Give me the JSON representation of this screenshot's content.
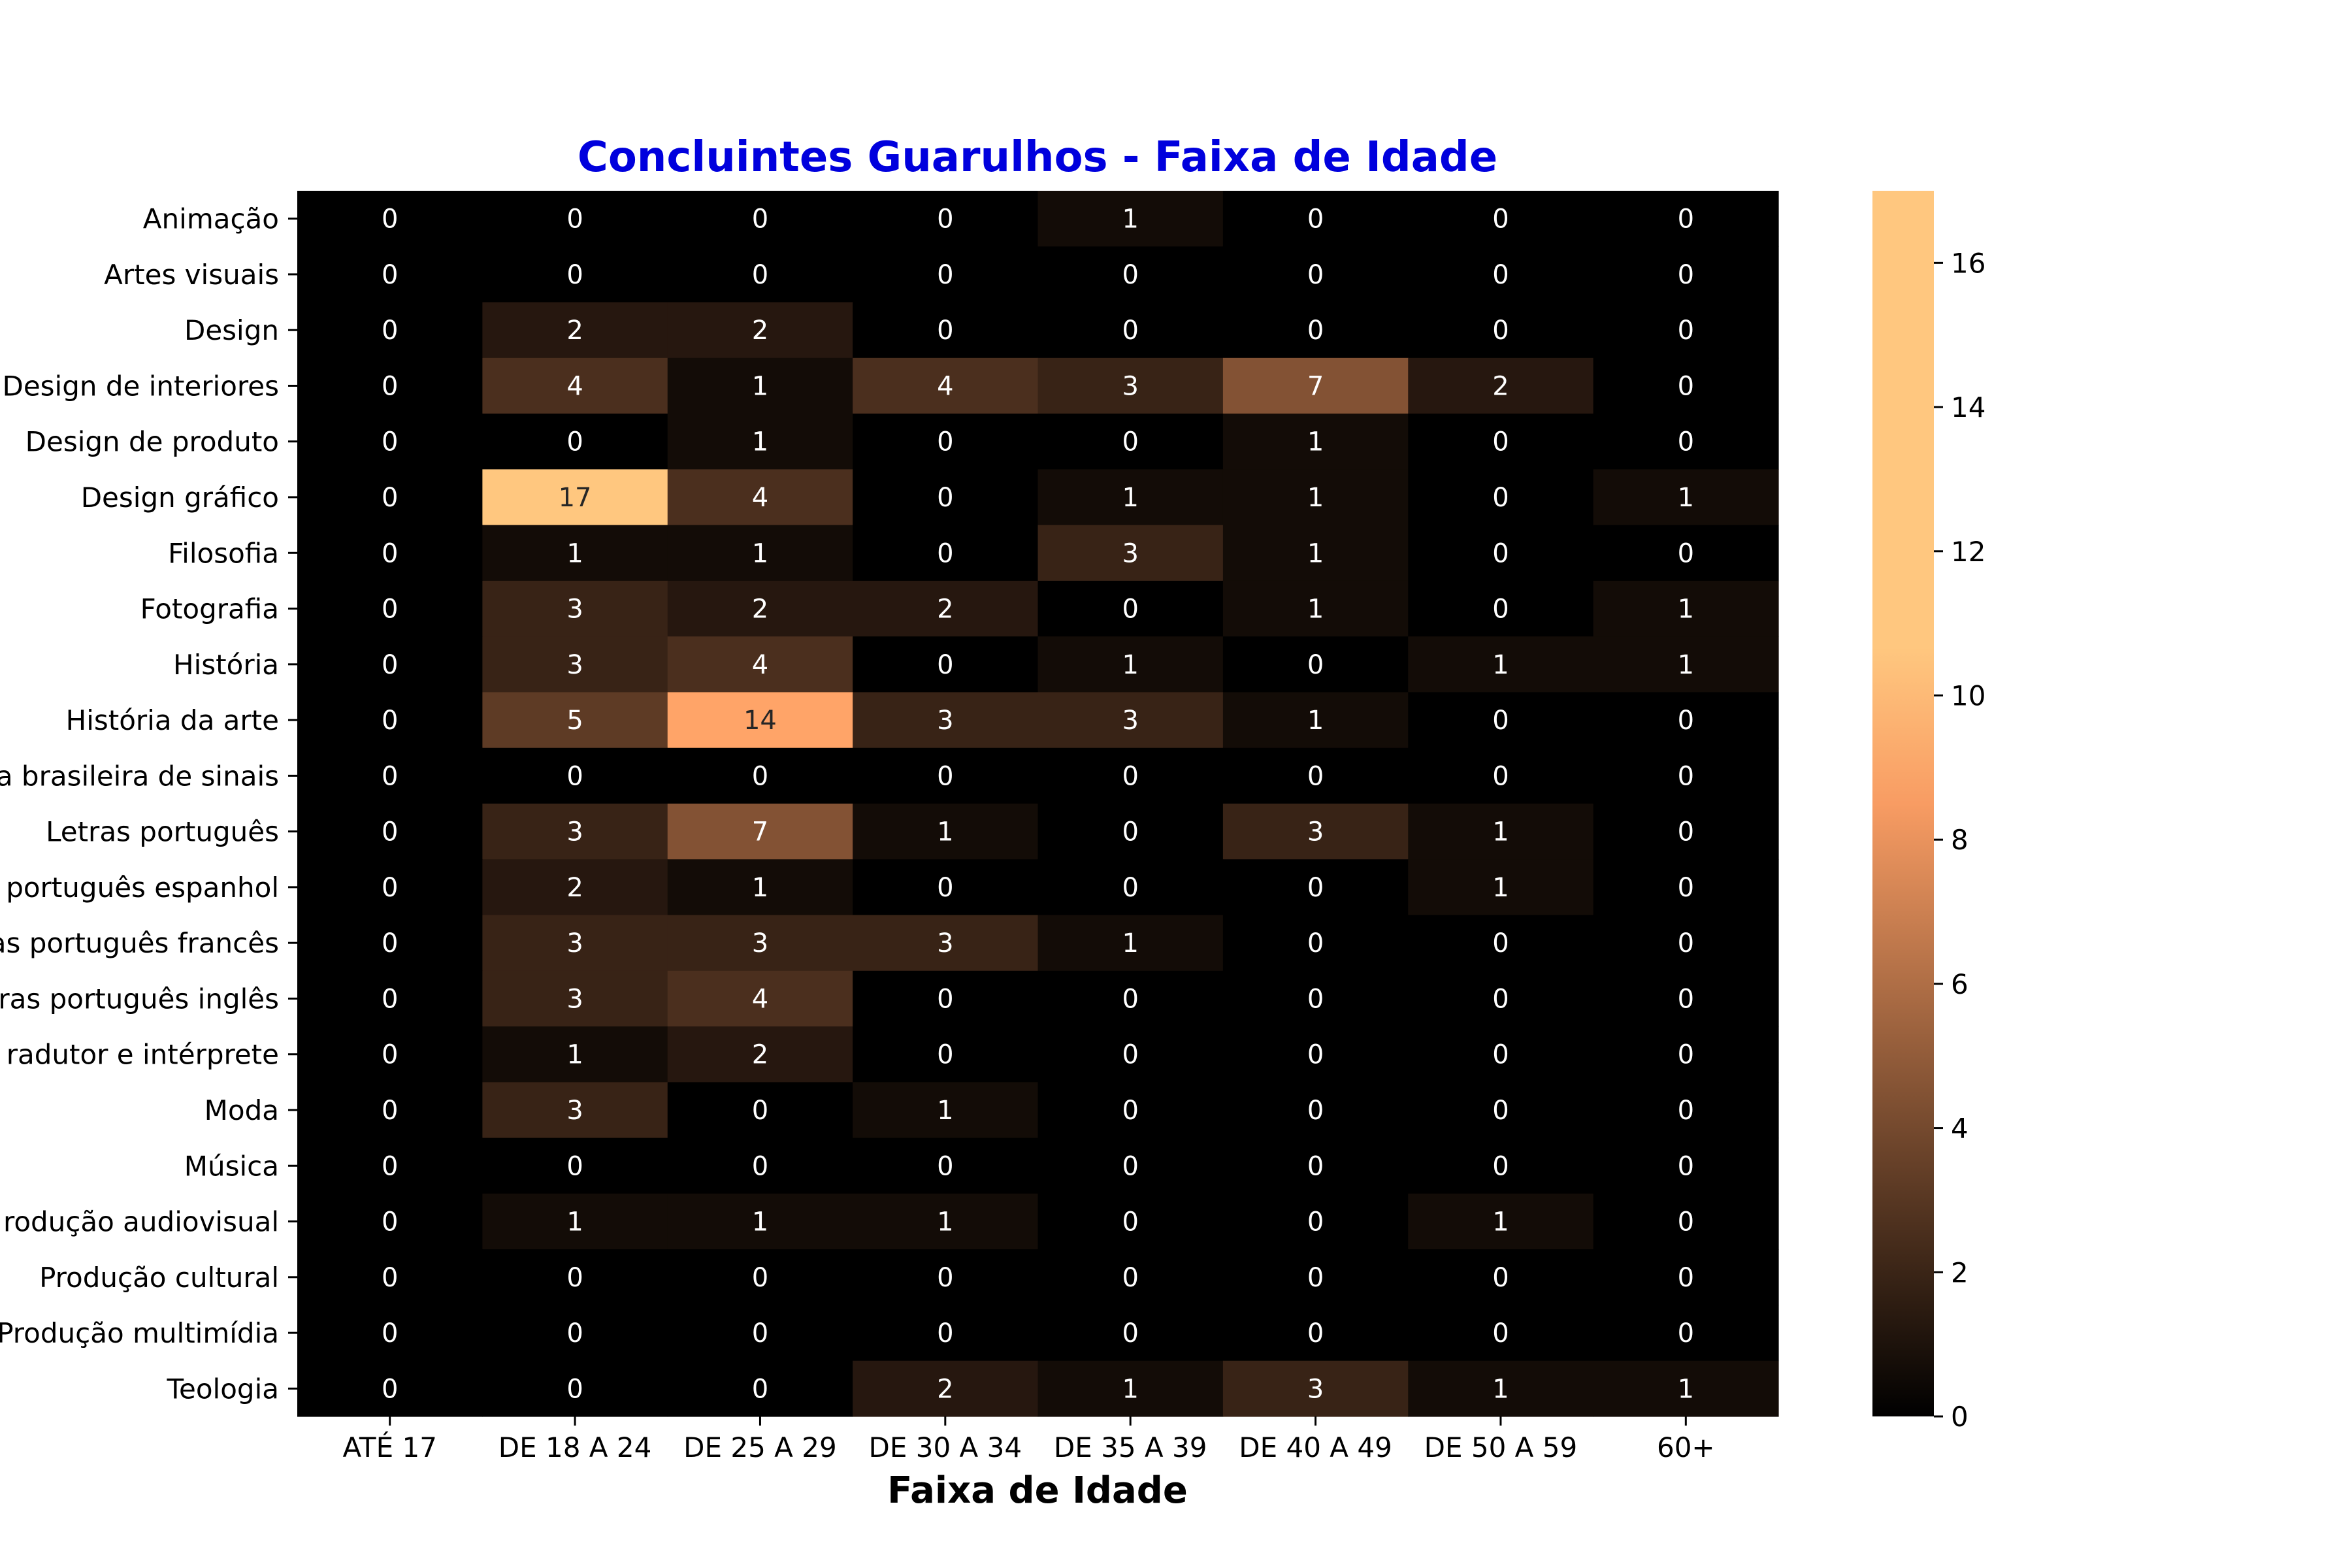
{
  "colors": {
    "title": "#0000dd",
    "text": "#000000",
    "colormap": "copper",
    "cmap_low": "#000000",
    "cmap_high": "#ffc77f"
  },
  "chart_data": {
    "type": "heatmap",
    "title": "Concluintes Guarulhos - Faixa de Idade",
    "xlabel": "Faixa de Idade",
    "ylabel": "",
    "x_categories": [
      "ATÉ 17",
      "DE 18 A 24",
      "DE 25 A 29",
      "DE 30 A 34",
      "DE 35 A 39",
      "DE 40 A 49",
      "DE 50 A 59",
      "60+"
    ],
    "y_categories": [
      "Animação",
      "Artes visuais",
      "Design",
      "Design de interiores",
      "Design de produto",
      "Design gráfico",
      "Filosofia",
      "Fotografia",
      "História",
      "História da arte",
      "a brasileira de sinais",
      "Letras português",
      " português espanhol",
      "as português francês",
      "ras português inglês",
      "radutor e intérprete",
      "Moda",
      "Música",
      "rodução audiovisual",
      "Produção cultural",
      "Produção multimídia",
      "Teologia"
    ],
    "values": [
      [
        0,
        0,
        0,
        0,
        1,
        0,
        0,
        0
      ],
      [
        0,
        0,
        0,
        0,
        0,
        0,
        0,
        0
      ],
      [
        0,
        2,
        2,
        0,
        0,
        0,
        0,
        0
      ],
      [
        0,
        4,
        1,
        4,
        3,
        7,
        2,
        0
      ],
      [
        0,
        0,
        1,
        0,
        0,
        1,
        0,
        0
      ],
      [
        0,
        17,
        4,
        0,
        1,
        1,
        0,
        1
      ],
      [
        0,
        1,
        1,
        0,
        3,
        1,
        0,
        0
      ],
      [
        0,
        3,
        2,
        2,
        0,
        1,
        0,
        1
      ],
      [
        0,
        3,
        4,
        0,
        1,
        0,
        1,
        1
      ],
      [
        0,
        5,
        14,
        3,
        3,
        1,
        0,
        0
      ],
      [
        0,
        0,
        0,
        0,
        0,
        0,
        0,
        0
      ],
      [
        0,
        3,
        7,
        1,
        0,
        3,
        1,
        0
      ],
      [
        0,
        2,
        1,
        0,
        0,
        0,
        1,
        0
      ],
      [
        0,
        3,
        3,
        3,
        1,
        0,
        0,
        0
      ],
      [
        0,
        3,
        4,
        0,
        0,
        0,
        0,
        0
      ],
      [
        0,
        1,
        2,
        0,
        0,
        0,
        0,
        0
      ],
      [
        0,
        3,
        0,
        1,
        0,
        0,
        0,
        0
      ],
      [
        0,
        0,
        0,
        0,
        0,
        0,
        0,
        0
      ],
      [
        0,
        1,
        1,
        1,
        0,
        0,
        1,
        0
      ],
      [
        0,
        0,
        0,
        0,
        0,
        0,
        0,
        0
      ],
      [
        0,
        0,
        0,
        0,
        0,
        0,
        0,
        0
      ],
      [
        0,
        0,
        0,
        2,
        1,
        3,
        1,
        1
      ]
    ],
    "colorbar": {
      "range": [
        0,
        17
      ],
      "ticks": [
        0,
        2,
        4,
        6,
        8,
        10,
        12,
        14,
        16
      ]
    },
    "annotations": "cell values",
    "grid": false,
    "legend": "colorbar-right"
  }
}
